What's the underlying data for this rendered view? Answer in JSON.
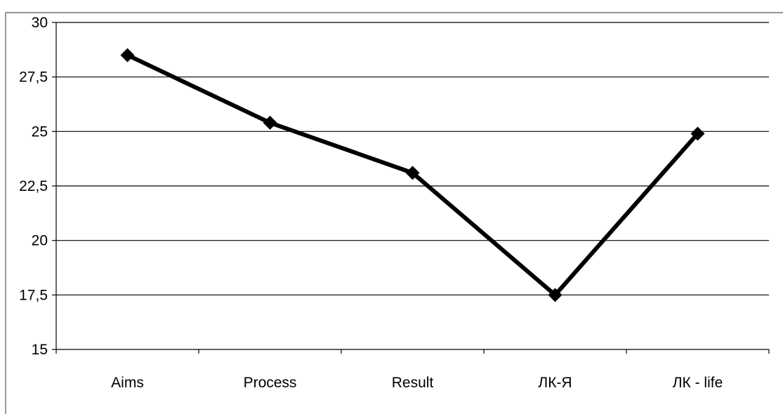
{
  "chart_data": {
    "type": "line",
    "title": "",
    "xlabel": "",
    "ylabel": "",
    "categories": [
      "Aims",
      "Process",
      "Result",
      "ЛК-Я",
      "ЛК - life"
    ],
    "series": [
      {
        "values": [
          28.5,
          25.4,
          23.1,
          17.5,
          24.9
        ]
      }
    ],
    "ylim": [
      15,
      30
    ],
    "yticks": [
      15,
      17.5,
      20,
      22.5,
      25,
      27.5,
      30
    ],
    "ytick_labels": [
      "15",
      "17,5",
      "20",
      "22,5",
      "25",
      "27,5",
      "30"
    ],
    "grid": "horizontal",
    "legend": "none",
    "marker": "diamond",
    "line_color": "#000000",
    "grid_color": "#000000"
  }
}
